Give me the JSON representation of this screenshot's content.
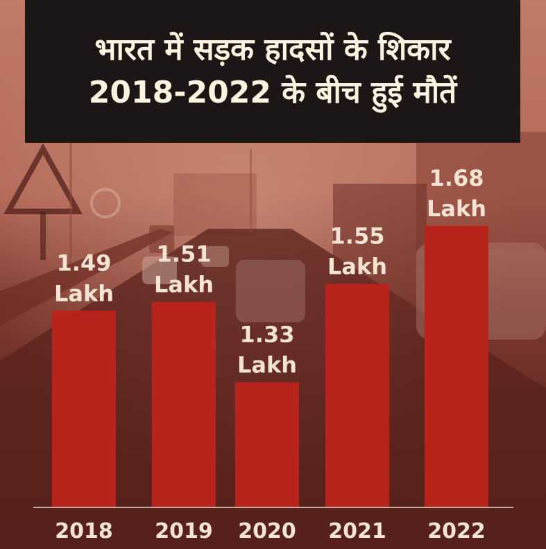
{
  "title_lines": [
    "भारत में सड़क हादसों के शिकार",
    "2018-2022 के बीच हुई मौतें"
  ],
  "colors": {
    "bar": "#b8231c",
    "title_bg": "#1c1716",
    "text": "#f4e4d4"
  },
  "chart_data": {
    "type": "bar",
    "title": "भारत में सड़क हादसों के शिकार 2018-2022 के बीच हुई मौतें",
    "categories": [
      "2018",
      "2019",
      "2020",
      "2021",
      "2022"
    ],
    "values": [
      1.49,
      1.51,
      1.33,
      1.55,
      1.68
    ],
    "value_numbers": [
      "1.49",
      "1.51",
      "1.33",
      "1.55",
      "1.68"
    ],
    "unit": "Lakh",
    "ylim": [
      0,
      1.72
    ]
  }
}
